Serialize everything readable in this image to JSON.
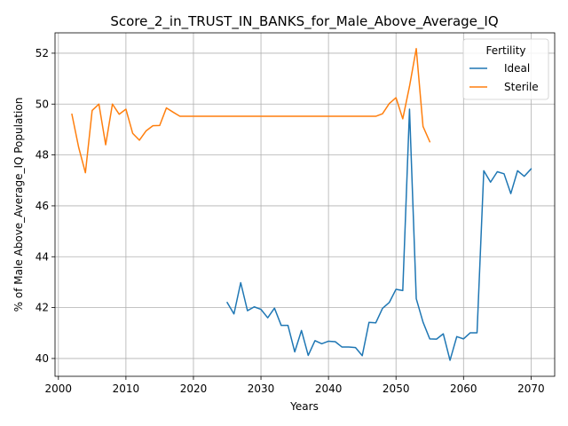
{
  "chart_data": {
    "type": "line",
    "title": "Score_2_in_TRUST_IN_BANKS_for_Male_Above_Average_IQ",
    "xlabel": "Years",
    "ylabel": "% of Male Above_Average_IQ Population",
    "xlim": [
      1999.5,
      2073.5
    ],
    "ylim": [
      39.3,
      52.8
    ],
    "xticks": [
      2000,
      2010,
      2020,
      2030,
      2040,
      2050,
      2060,
      2070
    ],
    "yticks": [
      40,
      42,
      44,
      46,
      48,
      50,
      52
    ],
    "grid": true,
    "legend": {
      "title": "Fertility",
      "placement": "top-right"
    },
    "series": [
      {
        "name": "Ideal",
        "color": "#1f77b4",
        "x": [
          2025,
          2026,
          2027,
          2028,
          2029,
          2030,
          2031,
          2032,
          2033,
          2034,
          2035,
          2036,
          2037,
          2038,
          2039,
          2040,
          2041,
          2042,
          2043,
          2044,
          2045,
          2046,
          2047,
          2048,
          2049,
          2050,
          2051,
          2052,
          2053,
          2054,
          2055,
          2056,
          2057,
          2058,
          2059,
          2060,
          2061,
          2062,
          2063,
          2064,
          2065,
          2066,
          2067,
          2068,
          2069,
          2070
        ],
        "y": [
          42.2,
          41.75,
          42.98,
          41.88,
          42.03,
          41.93,
          41.6,
          41.98,
          41.3,
          41.3,
          40.26,
          41.1,
          40.12,
          40.7,
          40.58,
          40.68,
          40.66,
          40.45,
          40.45,
          40.43,
          40.11,
          41.42,
          41.4,
          41.97,
          42.2,
          42.72,
          42.67,
          49.8,
          42.35,
          41.43,
          40.77,
          40.76,
          40.97,
          39.93,
          40.86,
          40.77,
          41.01,
          41.01,
          47.38,
          46.93,
          47.34,
          47.26,
          46.48,
          47.38,
          47.16,
          47.45
        ]
      },
      {
        "name": "Sterile",
        "color": "#ff7f0e",
        "x": [
          2002,
          2003,
          2004,
          2005,
          2006,
          2007,
          2008,
          2009,
          2010,
          2011,
          2012,
          2013,
          2014,
          2015,
          2016,
          2017,
          2018,
          2019,
          2020,
          2021,
          2022,
          2023,
          2024,
          2025,
          2026,
          2027,
          2028,
          2029,
          2030,
          2031,
          2032,
          2033,
          2034,
          2035,
          2036,
          2037,
          2038,
          2039,
          2040,
          2041,
          2042,
          2043,
          2044,
          2045,
          2046,
          2047,
          2048,
          2049,
          2050,
          2051,
          2052,
          2053,
          2054,
          2055
        ],
        "y": [
          49.6,
          48.3,
          47.3,
          49.75,
          50.0,
          48.4,
          50.0,
          49.6,
          49.8,
          48.85,
          48.58,
          48.95,
          49.15,
          49.16,
          49.85,
          49.68,
          49.52,
          49.52,
          49.52,
          49.52,
          49.52,
          49.52,
          49.52,
          49.52,
          49.52,
          49.52,
          49.52,
          49.52,
          49.52,
          49.52,
          49.52,
          49.52,
          49.52,
          49.52,
          49.52,
          49.52,
          49.52,
          49.52,
          49.52,
          49.52,
          49.52,
          49.52,
          49.52,
          49.52,
          49.52,
          49.52,
          49.62,
          50.02,
          50.25,
          49.42,
          50.7,
          52.18,
          49.12,
          48.52
        ]
      }
    ]
  }
}
